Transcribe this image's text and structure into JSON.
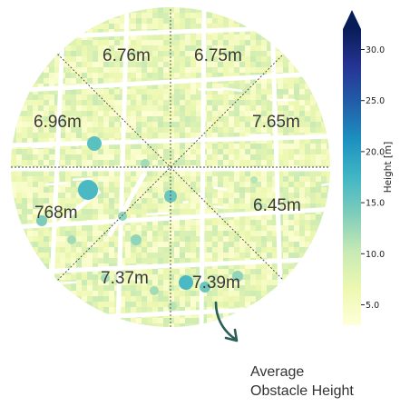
{
  "map": {
    "sector_values": [
      "6.76m",
      "6.75m",
      "7.65m",
      "6.45m",
      "7.39m",
      "7.37m",
      "768m",
      "6.96m"
    ]
  },
  "colorbar": {
    "title": "Height [m]",
    "ticks": [
      "5.0",
      "10.0",
      "15.0",
      "20.0",
      "25.0",
      "30.0"
    ],
    "min": 3,
    "max": 32,
    "colors": [
      "#ffffd9",
      "#edf8b1",
      "#c7e9b4",
      "#7fcdbb",
      "#41b6c4",
      "#1d91c0",
      "#225ea8",
      "#253494",
      "#081d58"
    ]
  },
  "legend": {
    "line1": "Average",
    "line2": "Obstacle Height"
  }
}
